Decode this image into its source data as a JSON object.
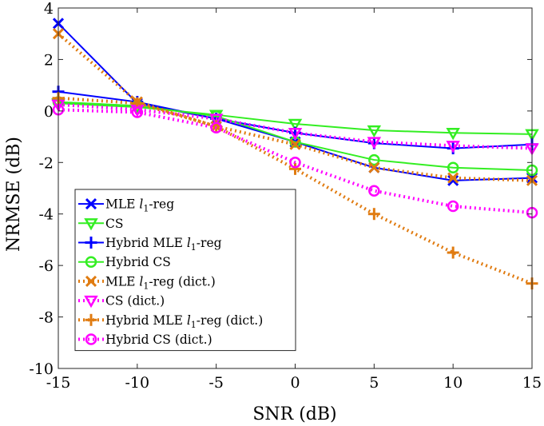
{
  "chart_data": {
    "type": "line",
    "title": "",
    "xlabel": "SNR (dB)",
    "ylabel": "NRMSE (dB)",
    "x": [
      -15,
      -10,
      -5,
      0,
      5,
      10,
      15
    ],
    "xlim": [
      -15,
      15
    ],
    "ylim": [
      -10,
      4
    ],
    "xticks": [
      "-15",
      "-10",
      "-5",
      "0",
      "5",
      "10",
      "15"
    ],
    "yticks": [
      "4",
      "2",
      "0",
      "-2",
      "-4",
      "-6",
      "-8",
      "-10"
    ],
    "legend_position": "lower-left",
    "series": [
      {
        "name": "MLE l1-reg",
        "legend": {
          "pre": "MLE ",
          "var": "l",
          "sub": "1",
          "post": "-reg"
        },
        "color": "#0000ff",
        "marker": "x",
        "dashed": false,
        "values": [
          3.4,
          0.3,
          -0.3,
          -1.2,
          -2.2,
          -2.7,
          -2.6
        ]
      },
      {
        "name": "CS",
        "legend": {
          "pre": "CS",
          "var": "",
          "sub": "",
          "post": ""
        },
        "color": "#33ee22",
        "marker": "triangle-down",
        "dashed": false,
        "values": [
          0.3,
          0.15,
          -0.15,
          -0.5,
          -0.75,
          -0.85,
          -0.9
        ]
      },
      {
        "name": "Hybrid MLE l1-reg",
        "legend": {
          "pre": "Hybrid MLE ",
          "var": "l",
          "sub": "1",
          "post": "-reg"
        },
        "color": "#0000ff",
        "marker": "plus",
        "dashed": false,
        "values": [
          0.75,
          0.35,
          -0.3,
          -0.85,
          -1.25,
          -1.45,
          -1.3
        ]
      },
      {
        "name": "Hybrid CS",
        "legend": {
          "pre": "Hybrid CS",
          "var": "",
          "sub": "",
          "post": ""
        },
        "color": "#33ee22",
        "marker": "circle",
        "dashed": false,
        "values": [
          0.35,
          0.2,
          -0.2,
          -1.2,
          -1.9,
          -2.2,
          -2.3
        ]
      },
      {
        "name": "MLE l1-reg (dict.)",
        "legend": {
          "pre": "MLE ",
          "var": "l",
          "sub": "1",
          "post": "-reg (dict.)"
        },
        "color": "#e07b10",
        "marker": "x",
        "dashed": true,
        "values": [
          3.0,
          0.35,
          -0.6,
          -1.3,
          -2.2,
          -2.6,
          -2.7
        ]
      },
      {
        "name": "CS (dict.)",
        "legend": {
          "pre": "CS (dict.)",
          "var": "",
          "sub": "",
          "post": ""
        },
        "color": "#ff00ff",
        "marker": "triangle-down",
        "dashed": true,
        "values": [
          0.25,
          0.05,
          -0.3,
          -0.85,
          -1.2,
          -1.35,
          -1.45
        ]
      },
      {
        "name": "Hybrid MLE l1-reg (dict.)",
        "legend": {
          "pre": "Hybrid MLE ",
          "var": "l",
          "sub": "1",
          "post": "-reg (dict.)"
        },
        "color": "#e07b10",
        "marker": "plus",
        "dashed": true,
        "values": [
          0.5,
          0.3,
          -0.6,
          -2.25,
          -4.0,
          -5.5,
          -6.7
        ]
      },
      {
        "name": "Hybrid CS (dict.)",
        "legend": {
          "pre": "Hybrid CS (dict.)",
          "var": "",
          "sub": "",
          "post": ""
        },
        "color": "#ff00ff",
        "marker": "circle",
        "dashed": true,
        "values": [
          0.05,
          -0.05,
          -0.65,
          -2.0,
          -3.1,
          -3.7,
          -3.95
        ]
      }
    ]
  }
}
